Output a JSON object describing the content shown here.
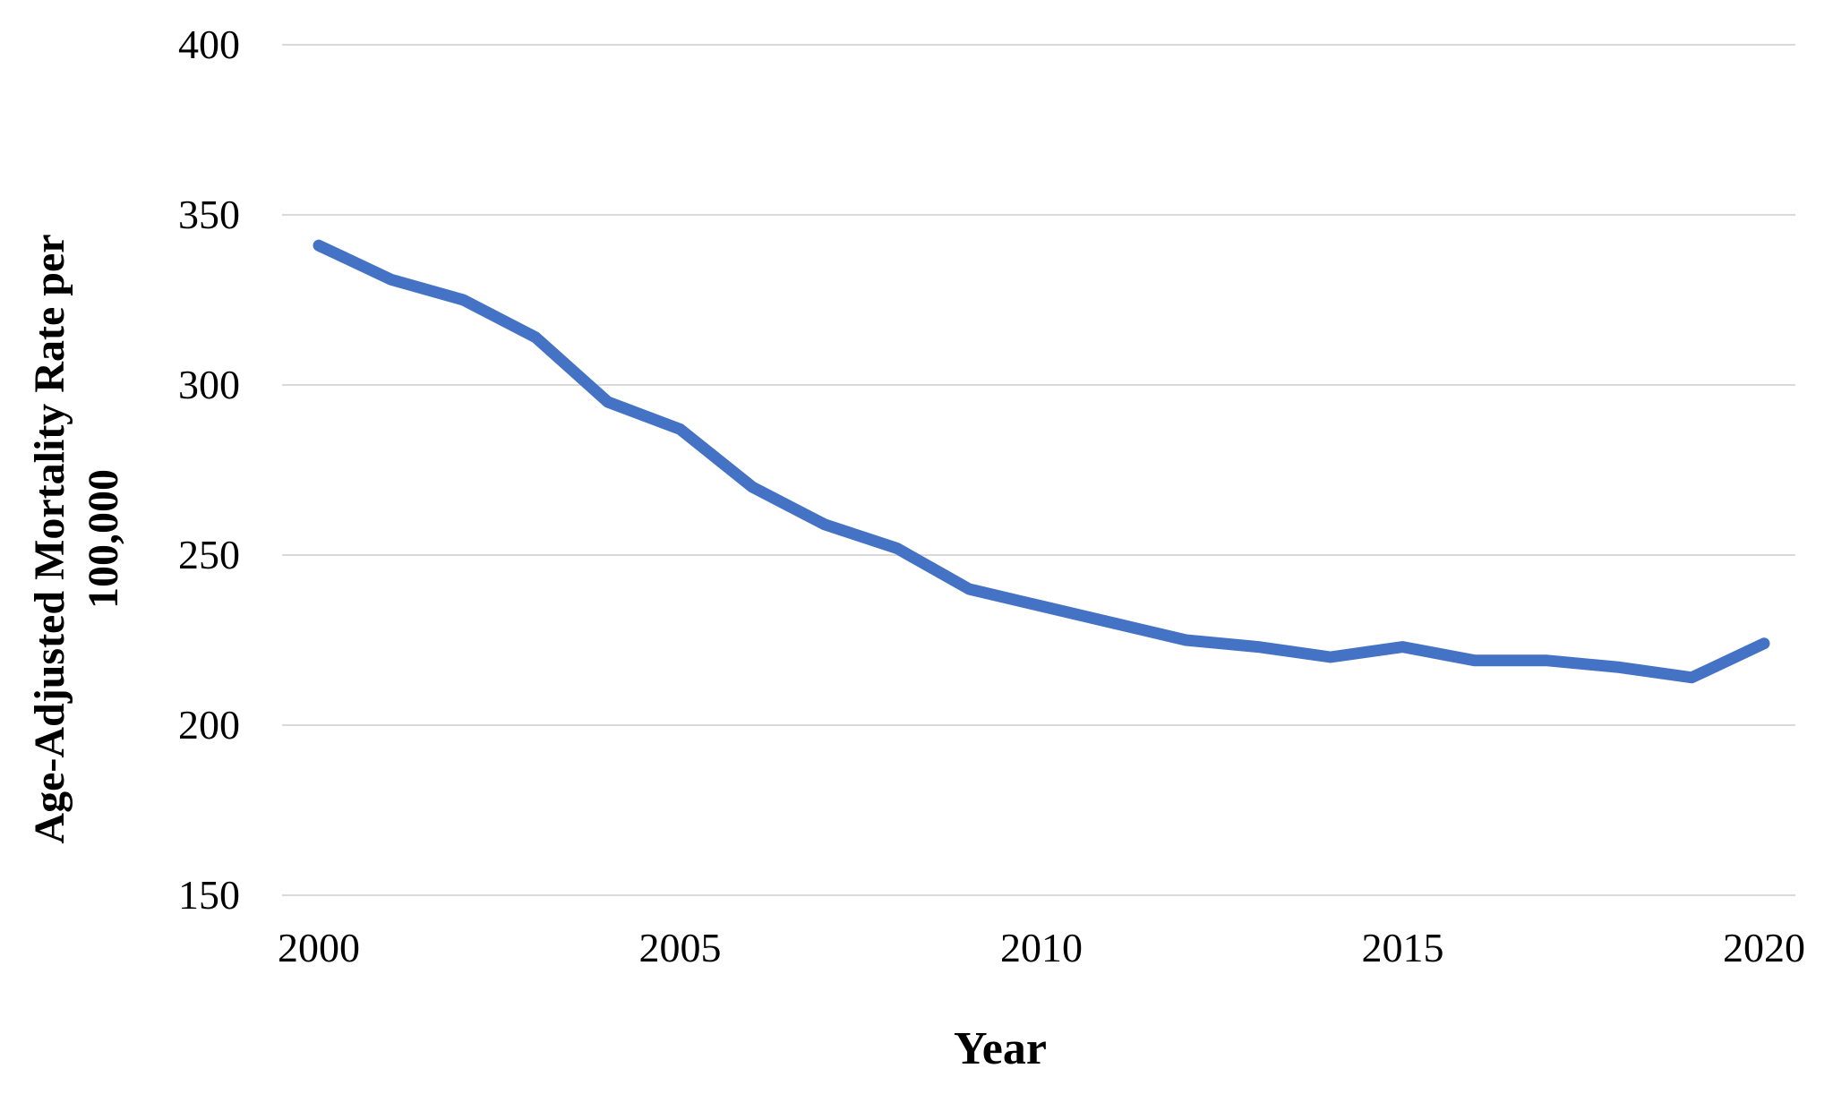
{
  "chart_data": {
    "type": "line",
    "title": "",
    "xlabel": "Year",
    "ylabel": "Age-Adjusted Mortality Rate per 100,000",
    "ylabel_line1": "Age-Adjusted Mortality Rate per",
    "ylabel_line2": "100,000",
    "x": [
      2000,
      2001,
      2002,
      2003,
      2004,
      2005,
      2006,
      2007,
      2008,
      2009,
      2010,
      2011,
      2012,
      2013,
      2014,
      2015,
      2016,
      2017,
      2018,
      2019,
      2020
    ],
    "series": [
      {
        "name": "Age-Adjusted Mortality Rate per 100,000",
        "values": [
          341,
          331,
          325,
          314,
          295,
          287,
          270,
          259,
          252,
          240,
          235,
          230,
          225,
          223,
          220,
          223,
          219,
          219,
          217,
          214,
          224
        ]
      }
    ],
    "x_ticks": [
      2000,
      2005,
      2010,
      2015,
      2020
    ],
    "y_ticks": [
      400,
      350,
      300,
      250,
      200,
      150
    ],
    "xlim": [
      2000,
      2020
    ],
    "ylim": [
      150,
      400
    ],
    "grid": "horizontal",
    "legend": "none",
    "line_color": "#4472C4",
    "gridline_color": "#D9D9D9",
    "text_color": "#000000"
  }
}
